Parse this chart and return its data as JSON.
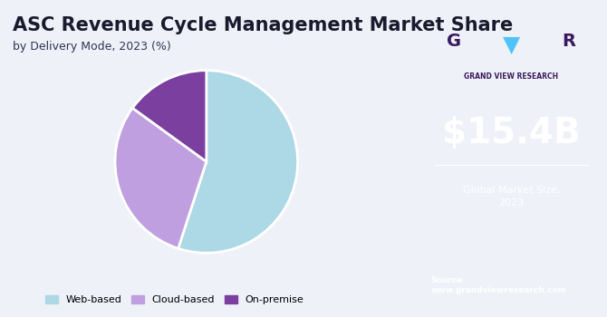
{
  "title": "ASC Revenue Cycle Management Market Share",
  "subtitle": "by Delivery Mode, 2023 (%)",
  "pie_labels": [
    "Web-based",
    "Cloud-based",
    "On-premise"
  ],
  "pie_values": [
    55,
    30,
    15
  ],
  "pie_colors": [
    "#add8e6",
    "#bf9fdf",
    "#7b3fa0"
  ],
  "pie_startangle": 90,
  "legend_labels": [
    "Web-based",
    "Cloud-based",
    "On-premise"
  ],
  "left_bg": "#eef2f8",
  "right_bg_top": "#3a1a5e",
  "right_bg_bottom": "#2a3a7e",
  "market_size": "$15.4B",
  "market_size_label": "Global Market Size,\n2023",
  "source_label": "Source:\nwww.grandviewresearch.com",
  "company_name": "GRAND VIEW RESEARCH",
  "title_fontsize": 15,
  "subtitle_fontsize": 9,
  "market_size_fontsize": 28
}
